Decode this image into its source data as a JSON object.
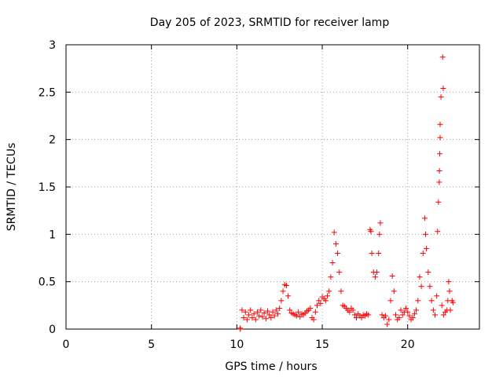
{
  "chart_data": {
    "type": "scatter",
    "title": "Day 205 of 2023, SRMTID for receiver lamp",
    "xlabel": "GPS time / hours",
    "ylabel": "SRMTID / TECUs",
    "xlim": [
      0,
      24.2
    ],
    "ylim": [
      0,
      3
    ],
    "xticks": [
      0,
      5,
      10,
      15,
      20
    ],
    "yticks": [
      0,
      0.5,
      1,
      1.5,
      2,
      2.5,
      3
    ],
    "xtick_labels": [
      "0",
      "5",
      "10",
      "15",
      "20"
    ],
    "ytick_labels": [
      "0",
      "0.5",
      "1",
      "1.5",
      "2",
      "2.5",
      "3"
    ],
    "grid": true,
    "legend": "none",
    "marker": "+",
    "series": [
      {
        "name": "SRMTID",
        "color": "#ff0000",
        "points": [
          [
            10.2,
            0.0
          ],
          [
            10.2,
            0.01
          ],
          [
            10.3,
            0.2
          ],
          [
            10.4,
            0.12
          ],
          [
            10.5,
            0.18
          ],
          [
            10.6,
            0.1
          ],
          [
            10.7,
            0.15
          ],
          [
            10.8,
            0.2
          ],
          [
            10.9,
            0.12
          ],
          [
            11.0,
            0.16
          ],
          [
            11.1,
            0.1
          ],
          [
            11.2,
            0.18
          ],
          [
            11.3,
            0.14
          ],
          [
            11.4,
            0.2
          ],
          [
            11.5,
            0.13
          ],
          [
            11.6,
            0.17
          ],
          [
            11.7,
            0.11
          ],
          [
            11.8,
            0.19
          ],
          [
            11.9,
            0.15
          ],
          [
            12.0,
            0.12
          ],
          [
            12.1,
            0.18
          ],
          [
            12.2,
            0.14
          ],
          [
            12.3,
            0.2
          ],
          [
            12.4,
            0.16
          ],
          [
            12.5,
            0.22
          ],
          [
            12.6,
            0.3
          ],
          [
            12.7,
            0.4
          ],
          [
            12.8,
            0.47
          ],
          [
            12.9,
            0.46
          ],
          [
            13.0,
            0.35
          ],
          [
            13.1,
            0.2
          ],
          [
            13.2,
            0.17
          ],
          [
            13.3,
            0.16
          ],
          [
            13.4,
            0.15
          ],
          [
            13.5,
            0.14
          ],
          [
            13.6,
            0.18
          ],
          [
            13.7,
            0.13
          ],
          [
            13.8,
            0.16
          ],
          [
            13.9,
            0.15
          ],
          [
            14.0,
            0.17
          ],
          [
            14.1,
            0.19
          ],
          [
            14.2,
            0.2
          ],
          [
            14.3,
            0.22
          ],
          [
            14.4,
            0.12
          ],
          [
            14.5,
            0.1
          ],
          [
            14.6,
            0.18
          ],
          [
            14.7,
            0.25
          ],
          [
            14.8,
            0.3
          ],
          [
            14.9,
            0.27
          ],
          [
            15.0,
            0.34
          ],
          [
            15.1,
            0.32
          ],
          [
            15.2,
            0.3
          ],
          [
            15.3,
            0.35
          ],
          [
            15.4,
            0.4
          ],
          [
            15.5,
            0.55
          ],
          [
            15.6,
            0.7
          ],
          [
            15.7,
            1.02
          ],
          [
            15.8,
            0.9
          ],
          [
            15.9,
            0.8
          ],
          [
            16.0,
            0.6
          ],
          [
            16.1,
            0.4
          ],
          [
            16.2,
            0.25
          ],
          [
            16.3,
            0.24
          ],
          [
            16.4,
            0.22
          ],
          [
            16.5,
            0.2
          ],
          [
            16.6,
            0.18
          ],
          [
            16.7,
            0.22
          ],
          [
            16.8,
            0.2
          ],
          [
            16.9,
            0.15
          ],
          [
            17.0,
            0.12
          ],
          [
            17.1,
            0.16
          ],
          [
            17.2,
            0.14
          ],
          [
            17.3,
            0.12
          ],
          [
            17.4,
            0.15
          ],
          [
            17.5,
            0.14
          ],
          [
            17.6,
            0.16
          ],
          [
            17.7,
            0.15
          ],
          [
            17.8,
            1.05
          ],
          [
            17.85,
            1.03
          ],
          [
            17.9,
            0.8
          ],
          [
            18.0,
            0.6
          ],
          [
            18.1,
            0.55
          ],
          [
            18.2,
            0.6
          ],
          [
            18.3,
            0.8
          ],
          [
            18.35,
            1.0
          ],
          [
            18.4,
            1.12
          ],
          [
            18.5,
            0.15
          ],
          [
            18.6,
            0.12
          ],
          [
            18.7,
            0.14
          ],
          [
            18.8,
            0.05
          ],
          [
            18.9,
            0.1
          ],
          [
            19.0,
            0.3
          ],
          [
            19.1,
            0.56
          ],
          [
            19.2,
            0.4
          ],
          [
            19.3,
            0.15
          ],
          [
            19.4,
            0.1
          ],
          [
            19.5,
            0.12
          ],
          [
            19.6,
            0.2
          ],
          [
            19.7,
            0.15
          ],
          [
            19.8,
            0.18
          ],
          [
            19.9,
            0.22
          ],
          [
            20.0,
            0.18
          ],
          [
            20.1,
            0.14
          ],
          [
            20.2,
            0.1
          ],
          [
            20.3,
            0.12
          ],
          [
            20.4,
            0.16
          ],
          [
            20.5,
            0.2
          ],
          [
            20.6,
            0.3
          ],
          [
            20.7,
            0.55
          ],
          [
            20.8,
            0.45
          ],
          [
            20.9,
            0.8
          ],
          [
            21.0,
            1.17
          ],
          [
            21.05,
            1.0
          ],
          [
            21.1,
            0.85
          ],
          [
            21.2,
            0.6
          ],
          [
            21.3,
            0.45
          ],
          [
            21.4,
            0.3
          ],
          [
            21.5,
            0.2
          ],
          [
            21.6,
            0.15
          ],
          [
            21.7,
            0.35
          ],
          [
            21.75,
            1.03
          ],
          [
            21.8,
            1.34
          ],
          [
            21.85,
            1.55
          ],
          [
            21.9,
            2.16
          ],
          [
            21.95,
            2.45
          ],
          [
            22.0,
            0.25
          ],
          [
            22.1,
            0.15
          ],
          [
            22.2,
            0.18
          ],
          [
            22.3,
            0.2
          ],
          [
            22.35,
            0.3
          ],
          [
            22.4,
            0.5
          ],
          [
            22.45,
            0.4
          ],
          [
            22.5,
            0.2
          ],
          [
            22.6,
            0.3
          ],
          [
            22.65,
            0.28
          ],
          [
            21.9,
            2.02
          ],
          [
            21.88,
            1.85
          ],
          [
            21.86,
            1.67
          ],
          [
            22.05,
            2.87
          ],
          [
            22.08,
            2.54
          ]
        ]
      }
    ]
  }
}
